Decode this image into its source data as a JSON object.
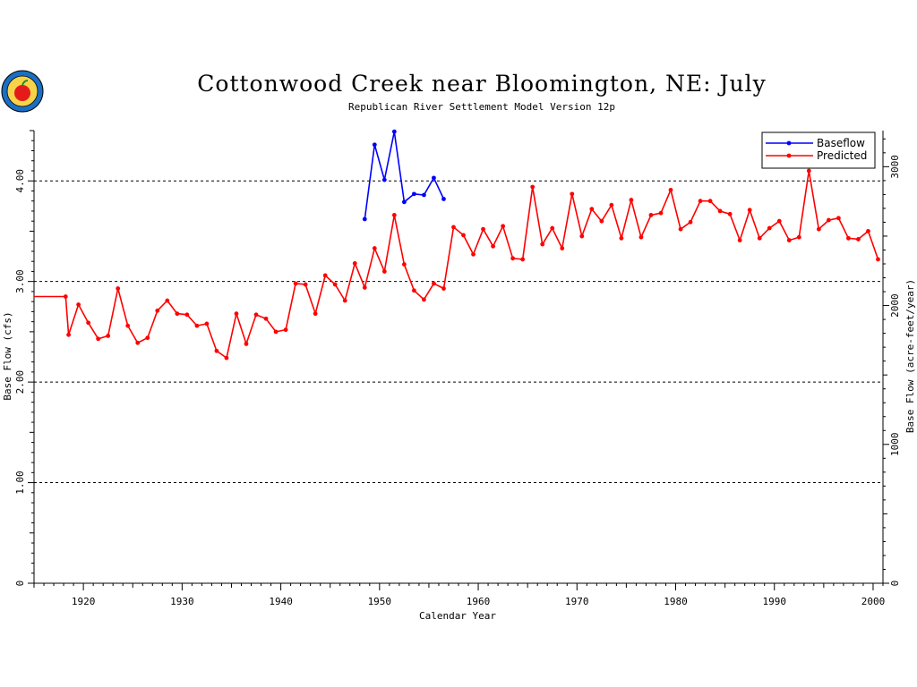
{
  "colors": {
    "baseflow": "#0000ff",
    "predicted": "#ff0000",
    "axis": "#000000",
    "background": "#ffffff"
  },
  "icons": {
    "logo": "apple-emblem-icon"
  },
  "chart_data": {
    "type": "line",
    "title": "Cottonwood Creek near Bloomington, NE: July",
    "subtitle": "Republican River Settlement Model Version 12p",
    "xlabel": "Calendar Year",
    "ylabel": "Base Flow (cfs)",
    "y2label": "Base Flow (acre-feet/year)",
    "xlim": [
      1915,
      2001
    ],
    "ylim": [
      0,
      4.5
    ],
    "y2lim": [
      0,
      3260
    ],
    "x_ticks": [
      1920,
      1930,
      1940,
      1950,
      1960,
      1970,
      1980,
      1990,
      2000
    ],
    "y_ticks": [
      0,
      1,
      2,
      3,
      4
    ],
    "y_tick_labels": [
      "0",
      "1.00",
      "2.00",
      "3.00",
      "4.00"
    ],
    "y2_ticks": [
      0,
      1000,
      2000,
      3000
    ],
    "y2_tick_labels": [
      "0",
      "1000",
      "2000",
      "3000"
    ],
    "grid": "dashed horizontal at y ticks",
    "legend_position": "top-right",
    "series": [
      {
        "name": "Baseflow",
        "color": "#0000ff",
        "markers": true,
        "x": [
          1948.5,
          1949.5,
          1950.5,
          1951.5,
          1952.5,
          1953.5,
          1954.5,
          1955.5,
          1956.5
        ],
        "y": [
          3.62,
          4.36,
          4.01,
          4.49,
          3.79,
          3.87,
          3.86,
          4.03,
          3.82
        ]
      },
      {
        "name": "Predicted",
        "color": "#ff0000",
        "markers": true,
        "x": [
          1915,
          1918.2,
          1918.5,
          1919.5,
          1920.5,
          1921.5,
          1922.5,
          1923.5,
          1924.5,
          1925.5,
          1926.5,
          1927.5,
          1928.5,
          1929.5,
          1930.5,
          1931.5,
          1932.5,
          1933.5,
          1934.5,
          1935.5,
          1936.5,
          1937.5,
          1938.5,
          1939.5,
          1940.5,
          1941.5,
          1942.5,
          1943.5,
          1944.5,
          1945.5,
          1946.5,
          1947.5,
          1948.5,
          1949.5,
          1950.5,
          1951.5,
          1952.5,
          1953.5,
          1954.5,
          1955.5,
          1956.5,
          1957.5,
          1958.5,
          1959.5,
          1960.5,
          1961.5,
          1962.5,
          1963.5,
          1964.5,
          1965.5,
          1966.5,
          1967.5,
          1968.5,
          1969.5,
          1970.5,
          1971.5,
          1972.5,
          1973.5,
          1974.5,
          1975.5,
          1976.5,
          1977.5,
          1978.5,
          1979.5,
          1980.5,
          1981.5,
          1982.5,
          1983.5,
          1984.5,
          1985.5,
          1986.5,
          1987.5,
          1988.5,
          1989.5,
          1990.5,
          1991.5,
          1992.5,
          1993.5,
          1994.5,
          1995.5,
          1996.5,
          1997.5,
          1998.5,
          1999.5,
          2000.5
        ],
        "y": [
          2.85,
          2.85,
          2.47,
          2.77,
          2.59,
          2.43,
          2.46,
          2.93,
          2.56,
          2.39,
          2.44,
          2.71,
          2.81,
          2.68,
          2.67,
          2.56,
          2.58,
          2.31,
          2.24,
          2.68,
          2.38,
          2.67,
          2.63,
          2.5,
          2.52,
          2.98,
          2.97,
          2.68,
          3.06,
          2.97,
          2.81,
          3.18,
          2.94,
          3.33,
          3.1,
          3.66,
          3.17,
          2.91,
          2.82,
          2.98,
          2.93,
          3.54,
          3.46,
          3.27,
          3.52,
          3.35,
          3.55,
          3.23,
          3.22,
          3.94,
          3.37,
          3.53,
          3.33,
          3.87,
          3.45,
          3.72,
          3.6,
          3.76,
          3.43,
          3.81,
          3.44,
          3.66,
          3.68,
          3.91,
          3.52,
          3.59,
          3.8,
          3.8,
          3.7,
          3.67,
          3.41,
          3.71,
          3.43,
          3.53,
          3.6,
          3.41,
          3.44,
          4.1,
          3.52,
          3.61,
          3.63,
          3.43,
          3.42,
          3.5,
          3.22
        ]
      }
    ]
  }
}
